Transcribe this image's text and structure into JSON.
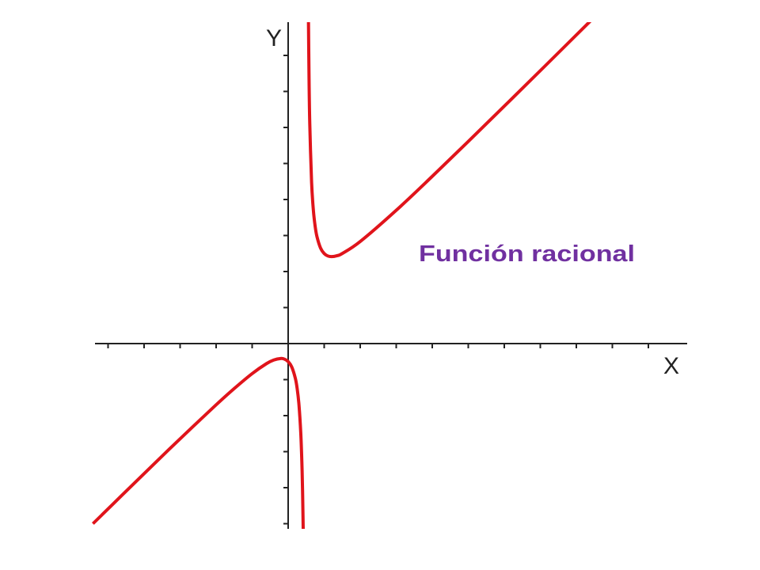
{
  "chart_data": {
    "type": "line",
    "title": "Función racional",
    "xlabel": "X",
    "ylabel": "Y",
    "xlim": [
      -5.42,
      11.2
    ],
    "ylim": [
      -5.15,
      9.2
    ],
    "x_ticks": [
      -5,
      -4,
      -3,
      -2,
      -1,
      1,
      2,
      3,
      4,
      5,
      6,
      7,
      8,
      9,
      10
    ],
    "y_ticks": [
      -5,
      -4,
      -3,
      -2,
      -1,
      1,
      2,
      3,
      4,
      5,
      6,
      7,
      8
    ],
    "grid": false,
    "tick_labels_shown": false,
    "series": [
      {
        "color": "#e0141b",
        "branches": [
          [
            [
              -5.42,
              -5.0
            ],
            [
              -4,
              -3.611
            ],
            [
              -3,
              -2.643
            ],
            [
              -2,
              -1.7
            ],
            [
              -1.5,
              -1.25
            ],
            [
              -1,
              -0.833
            ],
            [
              -0.6,
              -0.555
            ],
            [
              -0.4,
              -0.456
            ],
            [
              -0.21,
              -0.414
            ],
            [
              -0.1,
              -0.433
            ],
            [
              0,
              -0.5
            ],
            [
              0.1,
              -0.65
            ],
            [
              0.2,
              -0.967
            ],
            [
              0.25,
              -1.25
            ],
            [
              0.3,
              -1.7
            ],
            [
              0.35,
              -2.483
            ],
            [
              0.38,
              -3.287
            ],
            [
              0.4,
              -4.1
            ],
            [
              0.42,
              -5.33
            ]
          ],
          [
            [
              0.562,
              9.13
            ],
            [
              0.58,
              7.33
            ],
            [
              0.6,
              6.1
            ],
            [
              0.65,
              4.483
            ],
            [
              0.7,
              3.7
            ],
            [
              0.75,
              3.25
            ],
            [
              0.8,
              2.967
            ],
            [
              0.9,
              2.65
            ],
            [
              1.0,
              2.5
            ],
            [
              1.1,
              2.433
            ],
            [
              1.21,
              2.414
            ],
            [
              1.35,
              2.438
            ],
            [
              1.5,
              2.5
            ],
            [
              2,
              2.833
            ],
            [
              3,
              3.7
            ],
            [
              4,
              4.643
            ],
            [
              5,
              5.611
            ],
            [
              6,
              6.591
            ],
            [
              7,
              7.577
            ],
            [
              8.5,
              9.063
            ]
          ]
        ]
      }
    ],
    "annotation_color": "#7030a0"
  }
}
